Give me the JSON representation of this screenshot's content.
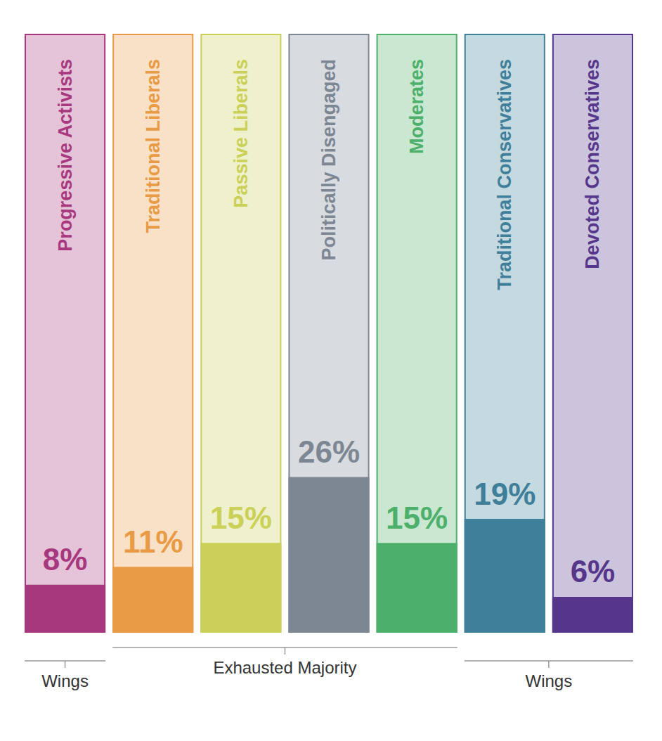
{
  "chart_data": {
    "type": "bar",
    "categories": [
      "Progressive Activists",
      "Traditional Liberals",
      "Passive Liberals",
      "Politically Disengaged",
      "Moderates",
      "Traditional Conservatives",
      "Devoted Conservatives"
    ],
    "values": [
      8,
      11,
      15,
      26,
      15,
      19,
      6
    ],
    "value_labels": [
      "8%",
      "11%",
      "15%",
      "26%",
      "15%",
      "19%",
      "6%"
    ],
    "colors": [
      "#a8387e",
      "#e89a45",
      "#cbd059",
      "#7d8793",
      "#4db06a",
      "#3f7f99",
      "#55368a"
    ],
    "ylim": [
      0,
      100
    ],
    "grid": false,
    "data_labels": true,
    "tick_labels": false,
    "groups": [
      {
        "label": "Wings",
        "members": [
          "Progressive Activists"
        ]
      },
      {
        "label": "Exhausted Majority",
        "members": [
          "Traditional Liberals",
          "Passive Liberals",
          "Politically Disengaged",
          "Moderates"
        ]
      },
      {
        "label": "Wings",
        "members": [
          "Traditional Conservatives",
          "Devoted Conservatives"
        ]
      }
    ]
  }
}
